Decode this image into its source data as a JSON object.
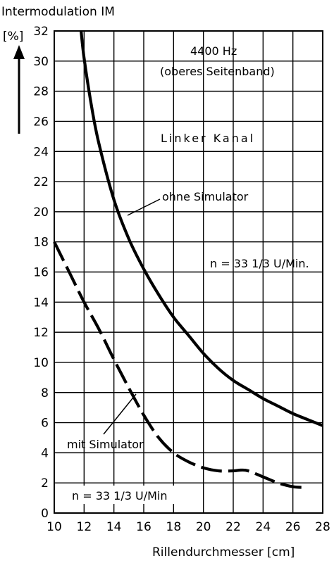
{
  "chart_data": {
    "type": "line",
    "ylabel_title": "Intermodulation IM",
    "ylabel_unit": "[%]",
    "xlabel": "Rillendurchmesser [cm]",
    "xlim": [
      10,
      28
    ],
    "ylim": [
      0,
      32
    ],
    "x_ticks": [
      10,
      12,
      14,
      16,
      18,
      20,
      22,
      24,
      26,
      28
    ],
    "y_ticks": [
      0,
      2,
      4,
      6,
      8,
      10,
      12,
      14,
      16,
      18,
      20,
      22,
      24,
      26,
      28,
      30,
      32
    ],
    "grid": true,
    "annotations": {
      "freq": "4400 Hz",
      "band": "(oberes Seitenband)",
      "channel": "Linker Kanal",
      "speed_top": "n = 33 1/3 U/Min.",
      "speed_bottom": "n = 33 1/3 U/Min"
    },
    "series": [
      {
        "name": "ohne Simulator",
        "style": "solid",
        "x": [
          11.8,
          12.0,
          12.5,
          13.0,
          14.0,
          15.0,
          16.0,
          17.0,
          18.0,
          19.0,
          20.0,
          21.0,
          22.0,
          23.0,
          24.0,
          25.0,
          26.0,
          27.0,
          28.0
        ],
        "y": [
          32.0,
          30.2,
          27.0,
          24.5,
          20.8,
          18.2,
          16.2,
          14.5,
          13.0,
          11.8,
          10.6,
          9.6,
          8.8,
          8.2,
          7.6,
          7.1,
          6.6,
          6.2,
          5.8
        ]
      },
      {
        "name": "mit Simulator",
        "style": "dashed",
        "x": [
          10.0,
          11.0,
          12.0,
          13.0,
          14.0,
          15.0,
          16.0,
          17.0,
          18.0,
          19.0,
          20.0,
          21.0,
          22.0,
          22.5,
          23.0,
          24.0,
          25.0,
          26.0,
          26.8
        ],
        "y": [
          18.0,
          16.0,
          14.0,
          12.2,
          10.2,
          8.3,
          6.5,
          5.0,
          4.0,
          3.4,
          3.0,
          2.8,
          2.8,
          2.85,
          2.8,
          2.4,
          2.0,
          1.75,
          1.7
        ]
      }
    ]
  }
}
